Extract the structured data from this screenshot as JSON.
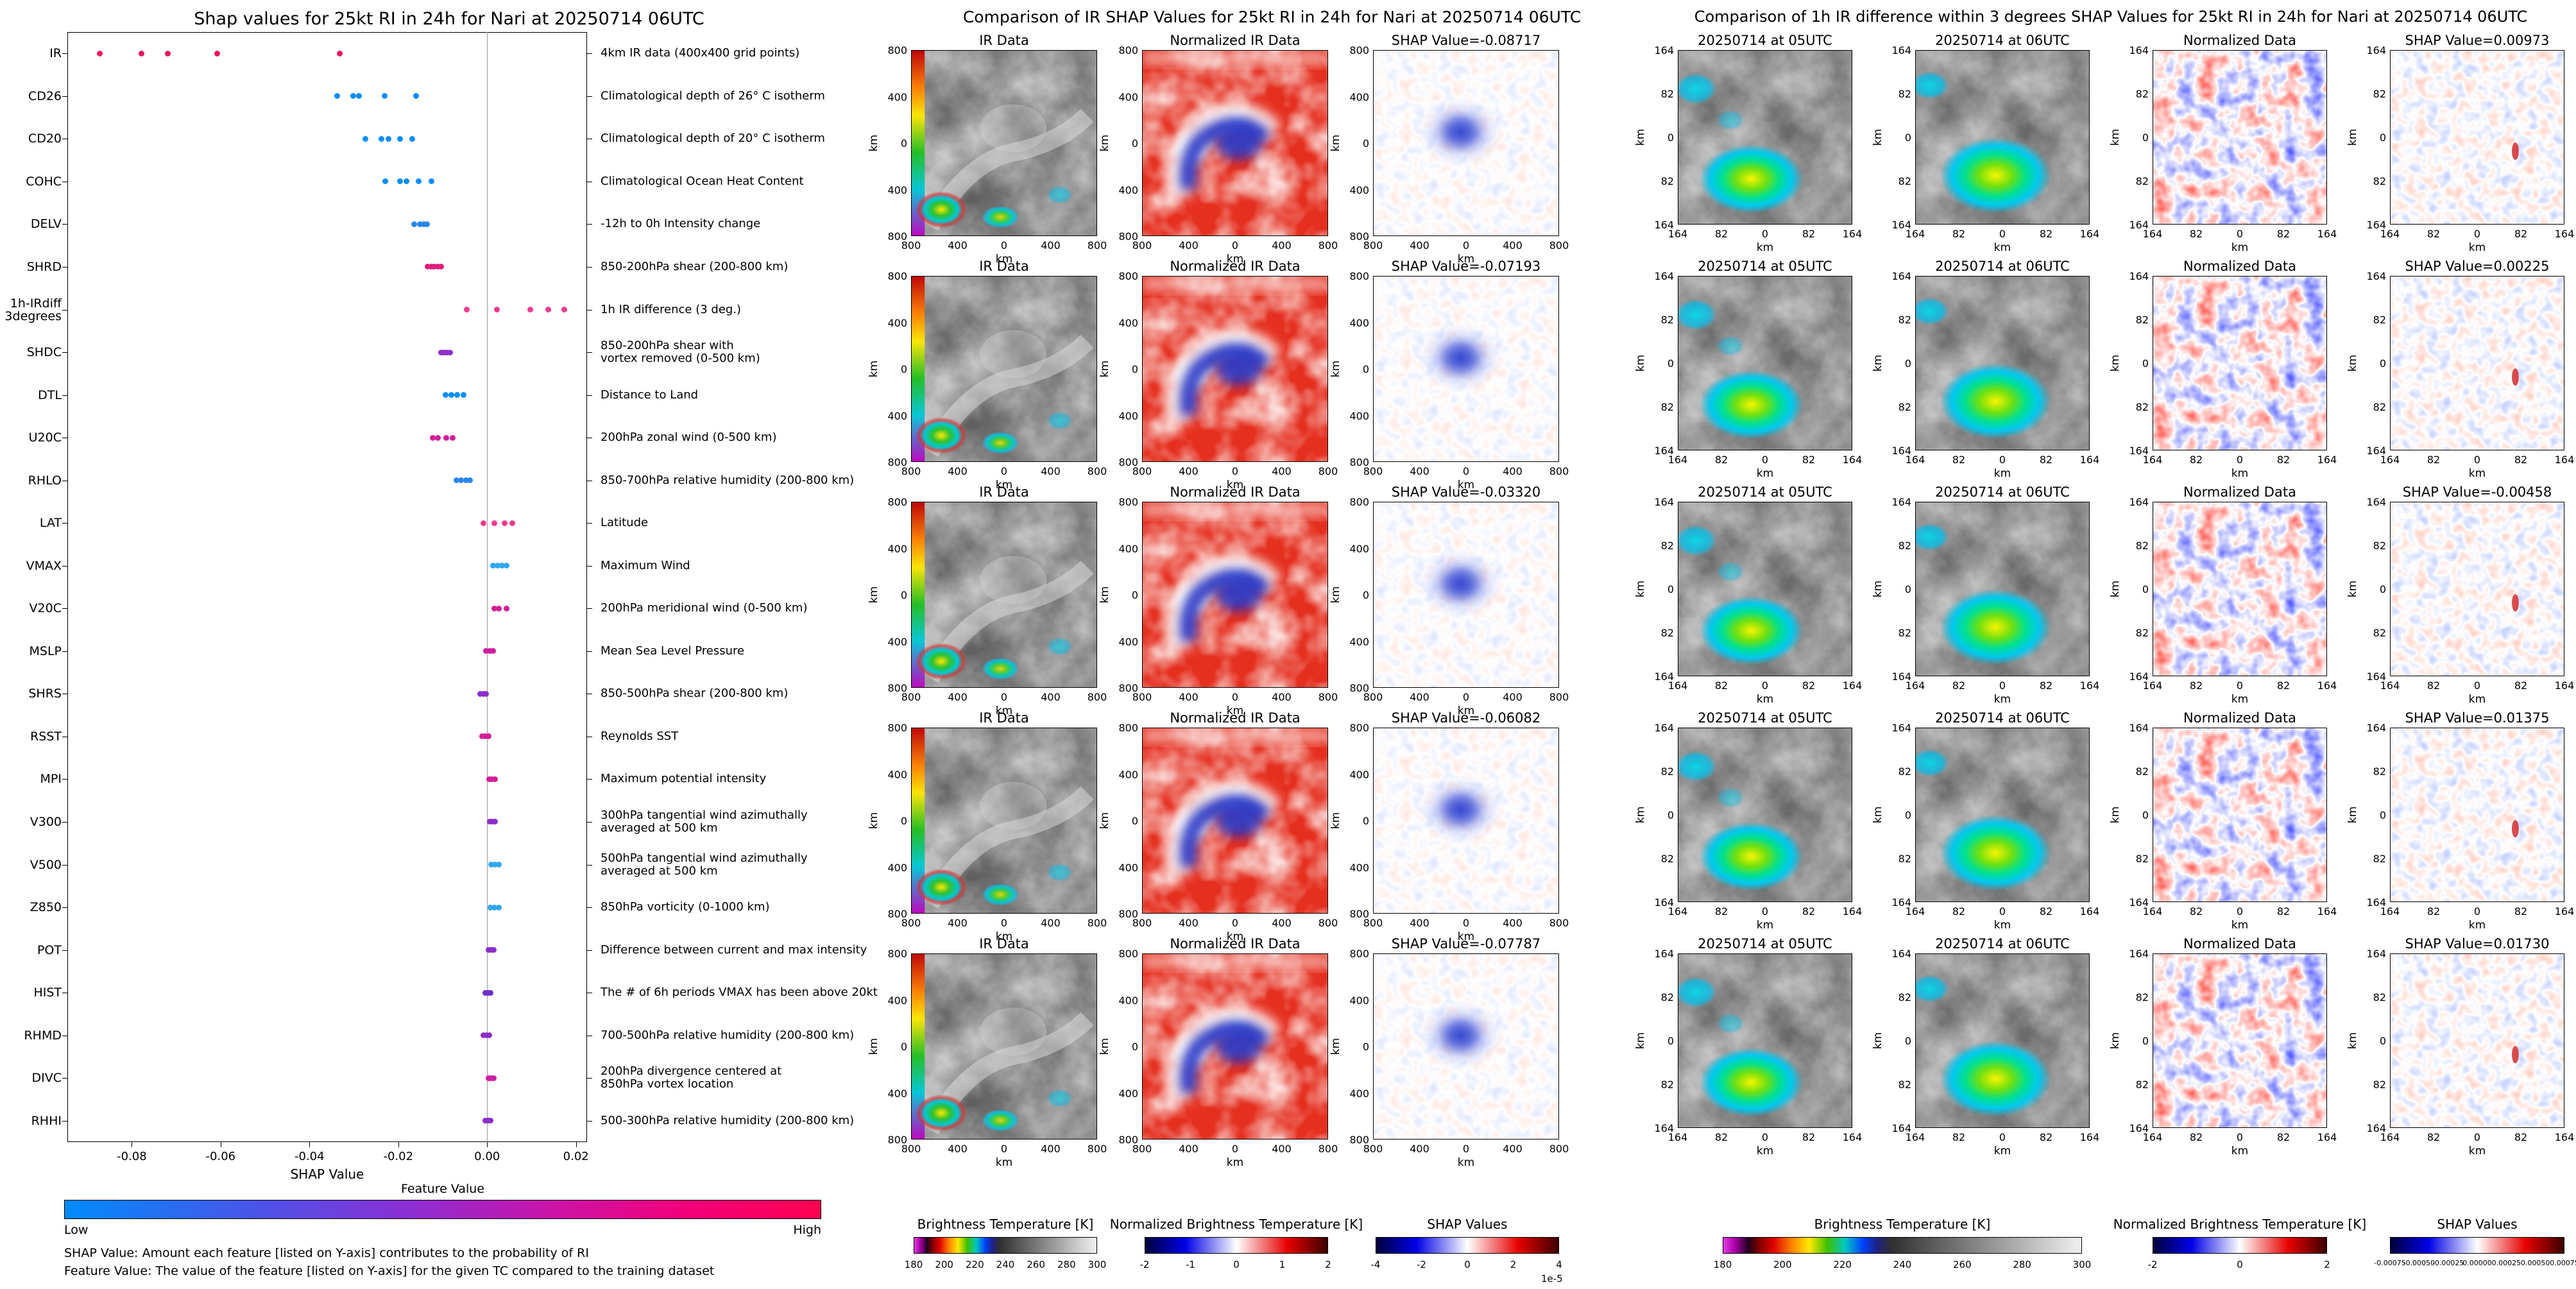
{
  "accent_colors": {
    "shap_blue": "#008bfb",
    "shap_pink": "#ff0051",
    "zero_line": "#999999"
  },
  "chart_data": [
    {
      "type": "scatter",
      "variant": "shap-beeswarm",
      "title": "Shap values for 25kt RI in 24h for Nari at 20250714 06UTC",
      "xlabel": "SHAP Value",
      "xlim": [
        -0.0945,
        0.0225
      ],
      "x_ticks": [
        -0.08,
        -0.06,
        -0.04,
        -0.02,
        0.0,
        0.02
      ],
      "x_tick_labels": [
        "-0.08",
        "-0.06",
        "-0.04",
        "-0.02",
        "0.00",
        "0.02"
      ],
      "zero_line": 0.0,
      "colorbar": {
        "title": "Feature Value",
        "low": "Low",
        "high": "High",
        "gradient": [
          "#008bfb",
          "#4a55e8",
          "#8a2fd4",
          "#cc13a6",
          "#f2007b",
          "#ff0051"
        ]
      },
      "footnotes": [
        "SHAP Value: Amount each feature [listed on Y-axis] contributes to the probability of RI",
        "Feature Value: The value of the feature [listed on Y-axis] for the given TC compared to the training dataset"
      ],
      "features": [
        {
          "name": "IR",
          "desc": "4km IR data (400x400 grid points)",
          "points": [
            [
              -0.08717,
              "#e8185d"
            ],
            [
              -0.07787,
              "#e8185d"
            ],
            [
              -0.07193,
              "#e8185d"
            ],
            [
              -0.06082,
              "#e8185d"
            ],
            [
              -0.0332,
              "#e8185d"
            ]
          ]
        },
        {
          "name": "CD26",
          "desc": "Climatological depth of 26° C isotherm",
          "points": [
            [
              -0.0338,
              "#0a8dfb"
            ],
            [
              -0.0302,
              "#0a8dfb"
            ],
            [
              -0.0288,
              "#0a8dfb"
            ],
            [
              -0.0231,
              "#0a8dfb"
            ],
            [
              -0.016,
              "#0a8dfb"
            ]
          ]
        },
        {
          "name": "CD20",
          "desc": "Climatological depth of 20° C isotherm",
          "points": [
            [
              -0.0274,
              "#0a8dfb"
            ],
            [
              -0.0238,
              "#0a8dfb"
            ],
            [
              -0.0222,
              "#0a8dfb"
            ],
            [
              -0.0196,
              "#0a8dfb"
            ],
            [
              -0.0168,
              "#0a8dfb"
            ]
          ]
        },
        {
          "name": "COHC",
          "desc": "Climatological Ocean Heat Content",
          "points": [
            [
              -0.0229,
              "#0a8dfb"
            ],
            [
              -0.0196,
              "#0a8dfb"
            ],
            [
              -0.0182,
              "#0a8dfb"
            ],
            [
              -0.0154,
              "#0a8dfb"
            ],
            [
              -0.0126,
              "#0a8dfb"
            ]
          ]
        },
        {
          "name": "DELV",
          "desc": "-12h to 0h Intensity change",
          "points": [
            [
              -0.0165,
              "#2a86ea"
            ],
            [
              -0.0152,
              "#2a86ea"
            ],
            [
              -0.0143,
              "#2a86ea"
            ],
            [
              -0.0135,
              "#2a86ea"
            ]
          ]
        },
        {
          "name": "SHRD",
          "desc": "850-200hPa shear (200-800 km)",
          "points": [
            [
              -0.0134,
              "#e01f7b"
            ],
            [
              -0.0126,
              "#e01f7b"
            ],
            [
              -0.0119,
              "#e01f7b"
            ],
            [
              -0.0111,
              "#e01f7b"
            ],
            [
              -0.0103,
              "#e01f7b"
            ]
          ]
        },
        {
          "name": "1h-IRdiff\n3degrees",
          "desc": "1h IR difference (3 deg.)",
          "points": [
            [
              -0.00458,
              "#ef3a96"
            ],
            [
              0.00225,
              "#ef3a96"
            ],
            [
              0.00973,
              "#ef3a96"
            ],
            [
              0.01375,
              "#ef3a96"
            ],
            [
              0.0173,
              "#ef3a96"
            ]
          ]
        },
        {
          "name": "SHDC",
          "desc": "850-200hPa shear with\nvortex removed (0-500 km)",
          "points": [
            [
              -0.0104,
              "#8b2fc9"
            ],
            [
              -0.0098,
              "#8b2fc9"
            ],
            [
              -0.0091,
              "#8b2fc9"
            ],
            [
              -0.0084,
              "#8b2fc9"
            ]
          ]
        },
        {
          "name": "DTL",
          "desc": "Distance to Land",
          "points": [
            [
              -0.0094,
              "#0a8dfb"
            ],
            [
              -0.0081,
              "#0a8dfb"
            ],
            [
              -0.0067,
              "#0a8dfb"
            ],
            [
              -0.0053,
              "#0a8dfb"
            ]
          ]
        },
        {
          "name": "U20C",
          "desc": "200hPa zonal wind (0-500 km)",
          "points": [
            [
              -0.0123,
              "#d21f97"
            ],
            [
              -0.0111,
              "#d21f97"
            ],
            [
              -0.0092,
              "#d21f97"
            ],
            [
              -0.0078,
              "#d21f97"
            ]
          ]
        },
        {
          "name": "RHLO",
          "desc": "850-700hPa relative humidity (200-800 km)",
          "points": [
            [
              -0.0069,
              "#2a86ea"
            ],
            [
              -0.0059,
              "#2a86ea"
            ],
            [
              -0.0047,
              "#2a86ea"
            ],
            [
              -0.0038,
              "#2a86ea"
            ]
          ]
        },
        {
          "name": "LAT",
          "desc": "Latitude",
          "points": [
            [
              -0.0008,
              "#f53c8c"
            ],
            [
              0.0016,
              "#f53c8c"
            ],
            [
              0.004,
              "#f53c8c"
            ],
            [
              0.0057,
              "#f53c8c"
            ]
          ]
        },
        {
          "name": "VMAX",
          "desc": "Maximum Wind",
          "points": [
            [
              0.0014,
              "#30a8f0"
            ],
            [
              0.0024,
              "#30a8f0"
            ],
            [
              0.0033,
              "#30a8f0"
            ],
            [
              0.0044,
              "#30a8f0"
            ]
          ]
        },
        {
          "name": "V20C",
          "desc": "200hPa meridional wind (0-500 km)",
          "points": [
            [
              0.0016,
              "#d21f97"
            ],
            [
              0.0027,
              "#d21f97"
            ],
            [
              0.0044,
              "#d21f97"
            ]
          ]
        },
        {
          "name": "MSLP",
          "desc": "Mean Sea Level Pressure",
          "points": [
            [
              -0.0002,
              "#cf1fa0"
            ],
            [
              0.0006,
              "#cf1fa0"
            ],
            [
              0.0013,
              "#cf1fa0"
            ]
          ]
        },
        {
          "name": "SHRS",
          "desc": "850-500hPa shear (200-800 km)",
          "points": [
            [
              -0.0016,
              "#8b2fc9"
            ],
            [
              -0.0008,
              "#8b2fc9"
            ],
            [
              -0.0002,
              "#8b2fc9"
            ]
          ]
        },
        {
          "name": "RSST",
          "desc": "Reynolds SST",
          "points": [
            [
              -0.0011,
              "#d21f97"
            ],
            [
              -0.0004,
              "#d21f97"
            ],
            [
              0.0003,
              "#d21f97"
            ]
          ]
        },
        {
          "name": "MPI",
          "desc": "Maximum potential intensity",
          "points": [
            [
              0.0005,
              "#d21f97"
            ],
            [
              0.0011,
              "#d21f97"
            ],
            [
              0.0017,
              "#d21f97"
            ]
          ]
        },
        {
          "name": "V300",
          "desc": "300hPa tangential wind azimuthally\naveraged at 500 km",
          "points": [
            [
              0.0006,
              "#8b2fc9"
            ],
            [
              0.0012,
              "#8b2fc9"
            ],
            [
              0.0018,
              "#8b2fc9"
            ]
          ]
        },
        {
          "name": "V500",
          "desc": "500hPa tangential wind azimuthally\naveraged at 500 km",
          "points": [
            [
              0.0009,
              "#30a8f0"
            ],
            [
              0.0017,
              "#30a8f0"
            ],
            [
              0.0026,
              "#30a8f0"
            ]
          ]
        },
        {
          "name": "Z850",
          "desc": "850hPa vorticity (0-1000 km)",
          "points": [
            [
              0.0008,
              "#30a8f0"
            ],
            [
              0.0016,
              "#30a8f0"
            ],
            [
              0.0026,
              "#30a8f0"
            ]
          ]
        },
        {
          "name": "POT",
          "desc": "Difference between current and max intensity",
          "points": [
            [
              0.0003,
              "#8b2fc9"
            ],
            [
              0.0009,
              "#8b2fc9"
            ],
            [
              0.0015,
              "#8b2fc9"
            ]
          ]
        },
        {
          "name": "HIST",
          "desc": "The # of 6h periods VMAX has been above 20kt",
          "points": [
            [
              -0.0004,
              "#6b30c9"
            ],
            [
              0.0002,
              "#6b30c9"
            ],
            [
              0.0008,
              "#6b30c9"
            ]
          ]
        },
        {
          "name": "RHMD",
          "desc": "700-500hPa relative humidity (200-800 km)",
          "points": [
            [
              -0.0008,
              "#8b2fc9"
            ],
            [
              -0.0001,
              "#8b2fc9"
            ],
            [
              0.0005,
              "#8b2fc9"
            ]
          ]
        },
        {
          "name": "DIVC",
          "desc": "200hPa divergence centered at\n850hPa vortex location",
          "points": [
            [
              0.0003,
              "#cf1fa0"
            ],
            [
              0.0009,
              "#cf1fa0"
            ],
            [
              0.0015,
              "#cf1fa0"
            ]
          ]
        },
        {
          "name": "RHHI",
          "desc": "500-300hPa relative humidity (200-800 km)",
          "points": [
            [
              -0.0004,
              "#8b2fc9"
            ],
            [
              0.0002,
              "#8b2fc9"
            ],
            [
              0.0008,
              "#8b2fc9"
            ]
          ]
        }
      ]
    },
    {
      "type": "heatmap",
      "variant": "ir-shap-grid",
      "title": "Comparison of IR SHAP Values for 25kt RI in 24h for Nari at 20250714 06UTC",
      "col_titles": [
        "IR Data",
        "Normalized IR Data"
      ],
      "rows": [
        {
          "shap_value": -0.08717,
          "shap_label": "SHAP Value=-0.08717"
        },
        {
          "shap_value": -0.07193,
          "shap_label": "SHAP Value=-0.07193"
        },
        {
          "shap_value": -0.0332,
          "shap_label": "SHAP Value=-0.03320"
        },
        {
          "shap_value": -0.06082,
          "shap_label": "SHAP Value=-0.06082"
        },
        {
          "shap_value": -0.07787,
          "shap_label": "SHAP Value=-0.07787"
        }
      ],
      "axis": {
        "x_tick_labels": [
          "800",
          "400",
          "0",
          "400",
          "800"
        ],
        "y_tick_labels": [
          "800",
          "400",
          "0",
          "400",
          "800"
        ],
        "xlabel": "km",
        "ylabel": "km"
      },
      "colorbars": [
        {
          "title": "Brightness Temperature [K]",
          "tick_labels": [
            "180",
            "200",
            "220",
            "240",
            "260",
            "280",
            "300"
          ],
          "palette": "ir-enhancement"
        },
        {
          "title": "Normalized Brightness Temperature [K]",
          "tick_labels": [
            "-2",
            "-1",
            "0",
            "1",
            "2"
          ],
          "palette": "seismic"
        },
        {
          "title": "SHAP Values",
          "tick_labels": [
            "-4",
            "-2",
            "0",
            "2",
            "4"
          ],
          "palette": "seismic",
          "offset_note": "1e-5"
        }
      ]
    },
    {
      "type": "heatmap",
      "variant": "irdiff-shap-grid",
      "title": "Comparison of 1h IR difference within 3 degrees SHAP Values for 25kt RI in 24h for Nari at 20250714 06UTC",
      "col_titles": [
        "20250714 at 05UTC",
        "20250714 at 06UTC",
        "Normalized Data"
      ],
      "rows": [
        {
          "shap_value": 0.00973,
          "shap_label": "SHAP Value=0.00973"
        },
        {
          "shap_value": 0.00225,
          "shap_label": "SHAP Value=0.00225"
        },
        {
          "shap_value": -0.00458,
          "shap_label": "SHAP Value=-0.00458"
        },
        {
          "shap_value": 0.01375,
          "shap_label": "SHAP Value=0.01375"
        },
        {
          "shap_value": 0.0173,
          "shap_label": "SHAP Value=0.01730"
        }
      ],
      "axis": {
        "x_tick_labels": [
          "164",
          "82",
          "0",
          "82",
          "164"
        ],
        "y_tick_labels": [
          "164",
          "82",
          "0",
          "82",
          "164"
        ],
        "xlabel": "km",
        "ylabel": "km"
      },
      "colorbars": [
        {
          "title": "Brightness Temperature [K]",
          "tick_labels": [
            "180",
            "200",
            "220",
            "240",
            "260",
            "280",
            "300"
          ],
          "palette": "ir-enhancement"
        },
        {
          "title": "Normalized Brightness Temperature [K]",
          "tick_labels": [
            "-2",
            "0",
            "2"
          ],
          "palette": "seismic"
        },
        {
          "title": "SHAP Values",
          "tick_labels": [
            "-0.00075",
            "-0.00050",
            "-0.00025",
            "0.00000",
            "0.00025",
            "0.00050",
            "0.00075"
          ],
          "palette": "seismic"
        }
      ]
    }
  ]
}
